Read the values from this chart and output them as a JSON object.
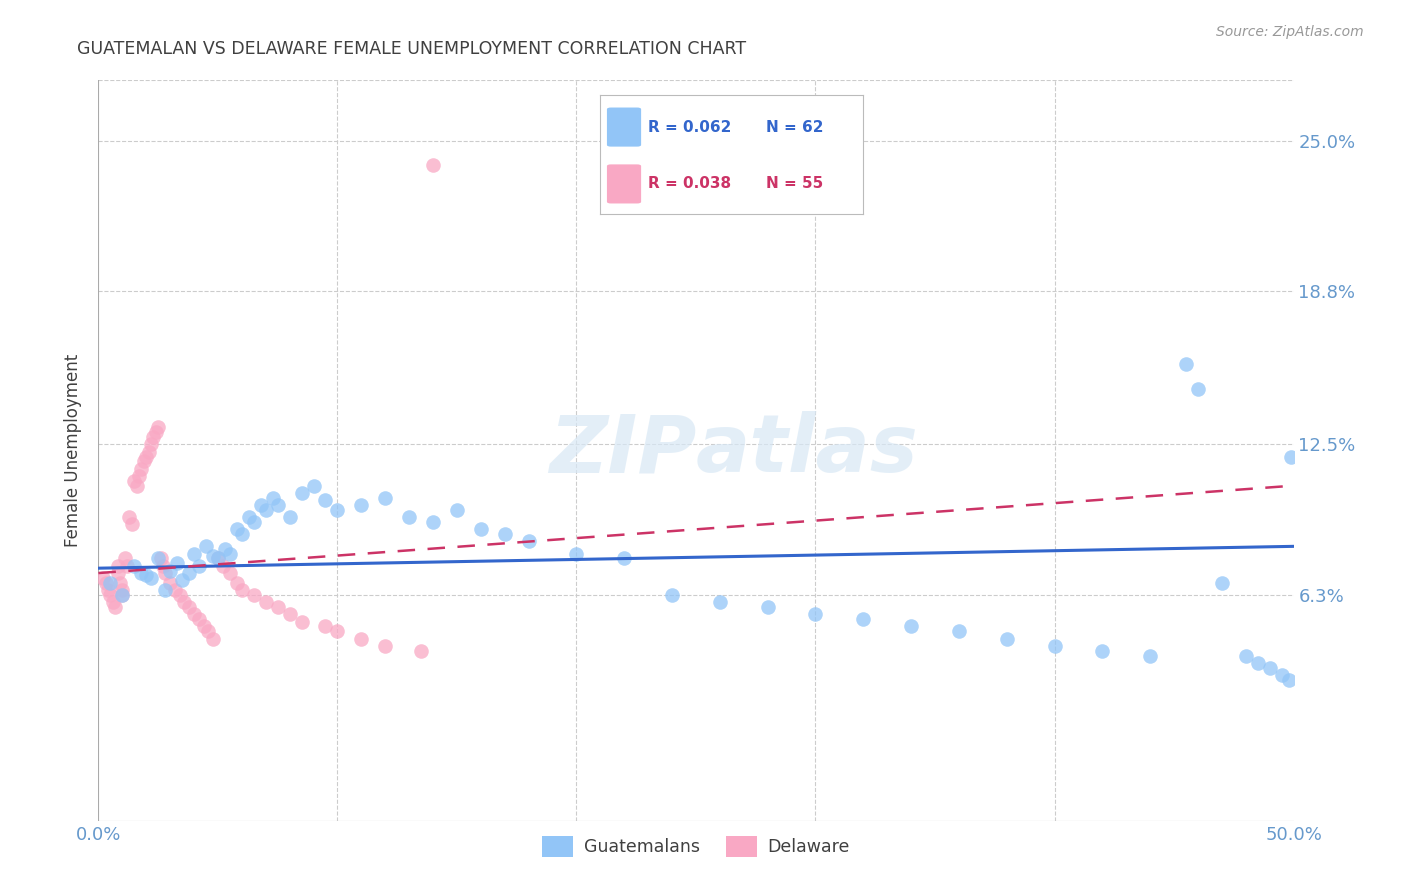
{
  "title": "GUATEMALAN VS DELAWARE FEMALE UNEMPLOYMENT CORRELATION CHART",
  "source": "Source: ZipAtlas.com",
  "ylabel": "Female Unemployment",
  "ytick_labels": [
    "25.0%",
    "18.8%",
    "12.5%",
    "6.3%"
  ],
  "ytick_values": [
    0.25,
    0.188,
    0.125,
    0.063
  ],
  "xmin": 0.0,
  "xmax": 0.5,
  "ymin": -0.03,
  "ymax": 0.275,
  "blue_color": "#92C5F7",
  "pink_color": "#F9A8C4",
  "blue_line_color": "#3366CC",
  "pink_line_color": "#CC3366",
  "legend_blue_r": "R = 0.062",
  "legend_blue_n": "N = 62",
  "legend_pink_r": "R = 0.038",
  "legend_pink_n": "N = 55",
  "blue_scatter_x": [
    0.005,
    0.01,
    0.015,
    0.018,
    0.02,
    0.022,
    0.025,
    0.028,
    0.03,
    0.033,
    0.035,
    0.038,
    0.04,
    0.042,
    0.045,
    0.048,
    0.05,
    0.053,
    0.055,
    0.058,
    0.06,
    0.063,
    0.065,
    0.068,
    0.07,
    0.073,
    0.075,
    0.08,
    0.085,
    0.09,
    0.095,
    0.1,
    0.11,
    0.12,
    0.13,
    0.14,
    0.15,
    0.16,
    0.17,
    0.18,
    0.2,
    0.22,
    0.24,
    0.26,
    0.28,
    0.3,
    0.32,
    0.34,
    0.36,
    0.38,
    0.4,
    0.42,
    0.44,
    0.455,
    0.46,
    0.47,
    0.48,
    0.485,
    0.49,
    0.495,
    0.498,
    0.499
  ],
  "blue_scatter_y": [
    0.068,
    0.063,
    0.075,
    0.072,
    0.071,
    0.07,
    0.078,
    0.065,
    0.073,
    0.076,
    0.069,
    0.072,
    0.08,
    0.075,
    0.083,
    0.079,
    0.078,
    0.082,
    0.08,
    0.09,
    0.088,
    0.095,
    0.093,
    0.1,
    0.098,
    0.103,
    0.1,
    0.095,
    0.105,
    0.108,
    0.102,
    0.098,
    0.1,
    0.103,
    0.095,
    0.093,
    0.098,
    0.09,
    0.088,
    0.085,
    0.08,
    0.078,
    0.063,
    0.06,
    0.058,
    0.055,
    0.053,
    0.05,
    0.048,
    0.045,
    0.042,
    0.04,
    0.038,
    0.158,
    0.148,
    0.068,
    0.038,
    0.035,
    0.033,
    0.03,
    0.028,
    0.12
  ],
  "pink_scatter_x": [
    0.002,
    0.003,
    0.004,
    0.005,
    0.006,
    0.007,
    0.008,
    0.008,
    0.009,
    0.01,
    0.01,
    0.011,
    0.012,
    0.013,
    0.014,
    0.015,
    0.016,
    0.017,
    0.018,
    0.019,
    0.02,
    0.021,
    0.022,
    0.023,
    0.024,
    0.025,
    0.026,
    0.027,
    0.028,
    0.03,
    0.032,
    0.034,
    0.036,
    0.038,
    0.04,
    0.042,
    0.044,
    0.046,
    0.048,
    0.05,
    0.052,
    0.055,
    0.058,
    0.06,
    0.065,
    0.07,
    0.075,
    0.08,
    0.085,
    0.095,
    0.1,
    0.11,
    0.12,
    0.135,
    0.14
  ],
  "pink_scatter_y": [
    0.07,
    0.068,
    0.065,
    0.063,
    0.06,
    0.058,
    0.075,
    0.072,
    0.068,
    0.065,
    0.063,
    0.078,
    0.075,
    0.095,
    0.092,
    0.11,
    0.108,
    0.112,
    0.115,
    0.118,
    0.12,
    0.122,
    0.125,
    0.128,
    0.13,
    0.132,
    0.078,
    0.075,
    0.072,
    0.068,
    0.065,
    0.063,
    0.06,
    0.058,
    0.055,
    0.053,
    0.05,
    0.048,
    0.045,
    0.078,
    0.075,
    0.072,
    0.068,
    0.065,
    0.063,
    0.06,
    0.058,
    0.055,
    0.052,
    0.05,
    0.048,
    0.045,
    0.042,
    0.04,
    0.24
  ],
  "blue_trendline_x": [
    0.0,
    0.5
  ],
  "blue_trendline_y": [
    0.074,
    0.083
  ],
  "pink_trendline_x": [
    0.0,
    0.5
  ],
  "pink_trendline_y": [
    0.072,
    0.108
  ],
  "watermark_left": "ZIP",
  "watermark_right": "atlas",
  "grid_color": "#CCCCCC",
  "background_color": "#FFFFFF",
  "title_color": "#404040",
  "tick_color": "#6699CC"
}
